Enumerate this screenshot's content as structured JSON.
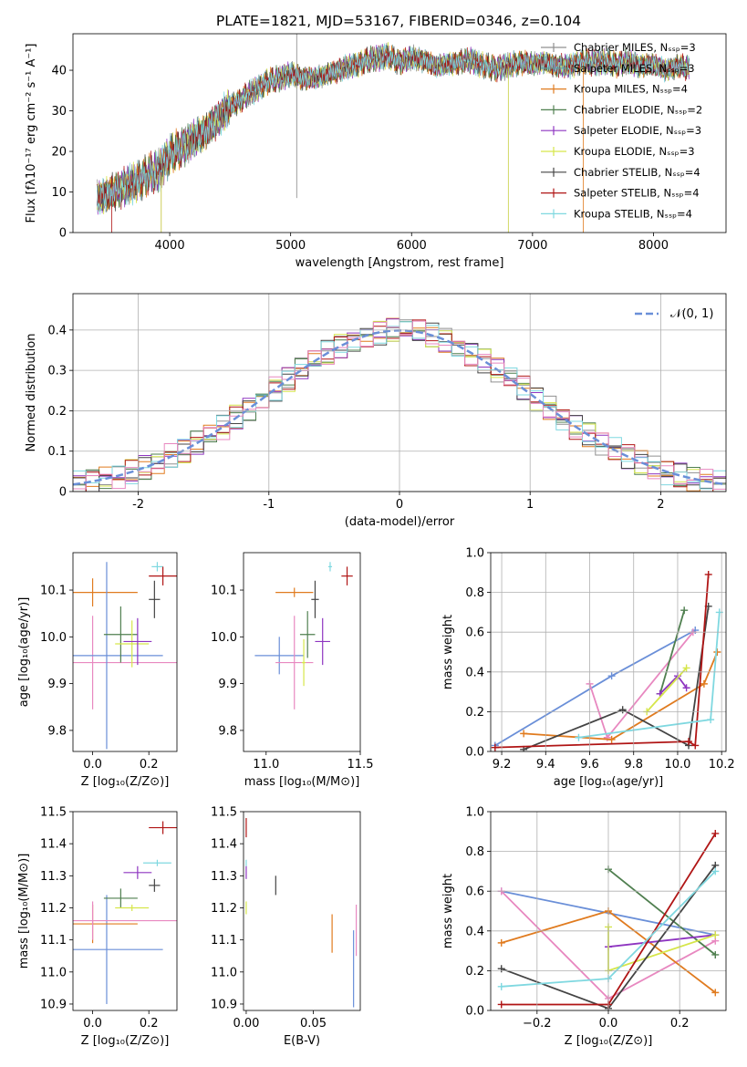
{
  "figure": {
    "title": "PLATE=1821, MJD=53167, FIBERID=0346, z=0.104"
  },
  "chart_data": [
    {
      "id": "spectrum",
      "type": "line",
      "xlabel": "wavelength [Angstrom, rest frame]",
      "ylabel": "Flux [fλ10⁻¹⁷ erg cm⁻² s⁻¹ A⁻¹]",
      "xlim": [
        3200,
        8600
      ],
      "ylim": [
        0,
        49
      ],
      "xticks": [
        4000,
        5000,
        6000,
        7000,
        8000
      ],
      "yticks": [
        0,
        10,
        20,
        30,
        40
      ],
      "legend_position": "right",
      "envelope": {
        "x": [
          3400,
          3500,
          3600,
          3700,
          3800,
          3900,
          4000,
          4100,
          4200,
          4300,
          4400,
          4500,
          4600,
          4700,
          4800,
          4900,
          5000,
          5100,
          5200,
          5300,
          5400,
          5500,
          5600,
          5700,
          5800,
          5900,
          6000,
          6100,
          6200,
          6300,
          6400,
          6500,
          6600,
          6700,
          6800,
          6900,
          7000,
          7100,
          7200,
          7300,
          7400,
          7500,
          7600,
          7700,
          7800,
          7900,
          8000,
          8100,
          8200,
          8300
        ],
        "y": [
          8.5,
          9.5,
          11,
          12,
          14,
          15,
          19,
          21,
          23,
          25,
          28,
          31,
          33,
          35,
          37,
          38,
          39,
          38,
          38,
          39,
          40,
          41,
          42,
          43,
          43.5,
          42,
          43,
          42.5,
          41,
          41.5,
          42,
          42.5,
          41,
          40.5,
          41,
          42,
          41.5,
          42,
          41,
          41,
          42,
          42,
          42,
          41.5,
          42,
          41,
          41.5,
          40,
          41,
          40.5
        ]
      },
      "series": [
        {
          "name": "Chabrier MILES, Nₛₛₚ=3",
          "color": "#909090"
        },
        {
          "name": "Salpeter MILES, Nₛₛₚ=3",
          "color": "#5f9ea0"
        },
        {
          "name": "Kroupa MILES, Nₛₛₚ=4",
          "color": "#e07b1f"
        },
        {
          "name": "Chabrier ELODIE, Nₛₛₚ=2",
          "color": "#4f7f4f"
        },
        {
          "name": "Salpeter ELODIE, Nₛₛₚ=3",
          "color": "#8e35c0"
        },
        {
          "name": "Kroupa ELODIE, Nₛₛₚ=3",
          "color": "#d6e64a"
        },
        {
          "name": "Chabrier STELIB, Nₛₛₚ=4",
          "color": "#444444"
        },
        {
          "name": "Salpeter STELIB, Nₛₛₚ=4",
          "color": "#b01515"
        },
        {
          "name": "Kroupa STELIB, Nₛₛₚ=4",
          "color": "#7fd8e0"
        }
      ]
    },
    {
      "id": "residuals",
      "type": "line",
      "xlabel": "(data-model)/error",
      "ylabel": "Normed distribution",
      "xlim": [
        -2.5,
        2.5
      ],
      "ylim": [
        0,
        0.49
      ],
      "xticks": [
        -2,
        -1,
        0,
        1,
        2
      ],
      "yticks": [
        0.0,
        0.1,
        0.2,
        0.3,
        0.4
      ],
      "grid": true,
      "legend_position": "top-right",
      "legend": "𝒩(0, 1)",
      "gaussian": {
        "mu": 0,
        "sigma": 1,
        "color": "#6a8fd8"
      },
      "histogram_bin_width": 0.1,
      "series_colors": [
        "#909090",
        "#e07b1f",
        "#4f7f4f",
        "#8e35c0",
        "#d6e64a",
        "#444444",
        "#b01515",
        "#7fd8e0",
        "#e888c0"
      ]
    },
    {
      "id": "age_vs_Z",
      "type": "scatter",
      "xlabel": "Z [log₁₀(Z/Z⊙)]",
      "ylabel": "age  [log₁₀(age/yr)]",
      "xlim": [
        -0.07,
        0.3
      ],
      "ylim": [
        9.755,
        10.18
      ],
      "xticks": [
        0.0,
        0.2
      ],
      "yticks": [
        9.8,
        9.9,
        10.0,
        10.1
      ],
      "xticklabels": [
        "0.0",
        "0.2"
      ],
      "yticklabels": [
        "9.8",
        "9.9",
        "10.0",
        "10.1"
      ],
      "points": [
        {
          "x": 0.0,
          "y": 10.095,
          "xerr": 0.16,
          "yerr": 0.03,
          "color": "#e07b1f"
        },
        {
          "x": 0.0,
          "y": 9.945,
          "xerr": 0.3,
          "yerr": 0.1,
          "color": "#e888c0"
        },
        {
          "x": 0.05,
          "y": 9.96,
          "xerr": 0.2,
          "yerr": 0.2,
          "color": "#6a8fd8"
        },
        {
          "x": 0.1,
          "y": 10.005,
          "xerr": 0.06,
          "yerr": 0.06,
          "color": "#4f7f4f"
        },
        {
          "x": 0.14,
          "y": 9.985,
          "xerr": 0.06,
          "yerr": 0.05,
          "color": "#d6e64a"
        },
        {
          "x": 0.16,
          "y": 9.99,
          "xerr": 0.05,
          "yerr": 0.05,
          "color": "#8e35c0"
        },
        {
          "x": 0.22,
          "y": 10.08,
          "xerr": 0.02,
          "yerr": 0.04,
          "color": "#444444"
        },
        {
          "x": 0.23,
          "y": 10.15,
          "xerr": 0.02,
          "yerr": 0.01,
          "color": "#7fd8e0"
        },
        {
          "x": 0.25,
          "y": 10.13,
          "xerr": 0.05,
          "yerr": 0.02,
          "color": "#b01515"
        }
      ]
    },
    {
      "id": "age_vs_mass",
      "type": "scatter",
      "xlabel": "mass [log₁₀(M/M⊙)]",
      "ylabel": "",
      "xlim": [
        10.88,
        11.5
      ],
      "ylim": [
        9.755,
        10.18
      ],
      "xticks": [
        11.0,
        11.5
      ],
      "yticks": [
        9.8,
        9.9,
        10.0,
        10.1
      ],
      "xticklabels": [
        "11.0",
        "11.5"
      ],
      "yticklabels": [
        "9.8",
        "9.9",
        "10.0",
        "10.1"
      ],
      "points": [
        {
          "x": 11.07,
          "y": 9.96,
          "xerr": 0.13,
          "yerr": 0.04,
          "color": "#6a8fd8"
        },
        {
          "x": 11.15,
          "y": 10.095,
          "xerr": 0.1,
          "yerr": 0.01,
          "color": "#e07b1f"
        },
        {
          "x": 11.15,
          "y": 9.945,
          "xerr": 0.1,
          "yerr": 0.1,
          "color": "#e888c0"
        },
        {
          "x": 11.22,
          "y": 10.005,
          "xerr": 0.04,
          "yerr": 0.05,
          "color": "#4f7f4f"
        },
        {
          "x": 11.2,
          "y": 9.945,
          "xerr": 0.01,
          "yerr": 0.05,
          "color": "#d6e64a"
        },
        {
          "x": 11.26,
          "y": 10.08,
          "xerr": 0.02,
          "yerr": 0.04,
          "color": "#444444"
        },
        {
          "x": 11.3,
          "y": 9.99,
          "xerr": 0.04,
          "yerr": 0.05,
          "color": "#8e35c0"
        },
        {
          "x": 11.34,
          "y": 10.15,
          "xerr": 0.01,
          "yerr": 0.01,
          "color": "#7fd8e0"
        },
        {
          "x": 11.43,
          "y": 10.13,
          "xerr": 0.03,
          "yerr": 0.02,
          "color": "#b01515"
        }
      ]
    },
    {
      "id": "weight_vs_age",
      "type": "line",
      "xlabel": "age  [log₁₀(age/yr)]",
      "ylabel": "mass weight",
      "xlim": [
        9.15,
        10.22
      ],
      "ylim": [
        0,
        1
      ],
      "xticks": [
        9.2,
        9.4,
        9.6,
        9.8,
        10.0,
        10.2
      ],
      "yticks": [
        0.0,
        0.2,
        0.4,
        0.6,
        0.8,
        1.0
      ],
      "xticklabels": [
        "9.2",
        "9.4",
        "9.6",
        "9.8",
        "10.0",
        "10.2"
      ],
      "yticklabels": [
        "0.0",
        "0.2",
        "0.4",
        "0.6",
        "0.8",
        "1.0"
      ],
      "grid": true,
      "series": [
        {
          "color": "#6a8fd8",
          "points": [
            [
              9.17,
              0.03
            ],
            [
              9.7,
              0.38
            ],
            [
              10.08,
              0.61
            ]
          ]
        },
        {
          "color": "#e888c0",
          "points": [
            [
              9.6,
              0.34
            ],
            [
              9.68,
              0.07
            ],
            [
              10.07,
              0.6
            ]
          ]
        },
        {
          "color": "#e07b1f",
          "points": [
            [
              9.3,
              0.09
            ],
            [
              9.7,
              0.06
            ],
            [
              10.12,
              0.34
            ],
            [
              10.18,
              0.5
            ]
          ]
        },
        {
          "color": "#4f7f4f",
          "points": [
            [
              9.92,
              0.29
            ],
            [
              10.03,
              0.71
            ]
          ]
        },
        {
          "color": "#8e35c0",
          "points": [
            [
              9.92,
              0.29
            ],
            [
              10.0,
              0.38
            ],
            [
              10.04,
              0.32
            ]
          ]
        },
        {
          "color": "#d6e64a",
          "points": [
            [
              9.86,
              0.2
            ],
            [
              10.04,
              0.42
            ]
          ]
        },
        {
          "color": "#444444",
          "points": [
            [
              9.3,
              0.01
            ],
            [
              9.75,
              0.21
            ],
            [
              10.05,
              0.03
            ],
            [
              10.14,
              0.73
            ]
          ]
        },
        {
          "color": "#b01515",
          "points": [
            [
              9.17,
              0.02
            ],
            [
              10.05,
              0.05
            ],
            [
              10.08,
              0.03
            ],
            [
              10.14,
              0.89
            ]
          ]
        },
        {
          "color": "#7fd8e0",
          "points": [
            [
              9.55,
              0.07
            ],
            [
              10.15,
              0.16
            ],
            [
              10.19,
              0.7
            ]
          ]
        }
      ]
    },
    {
      "id": "mass_vs_Z",
      "type": "scatter",
      "xlabel": "Z [log₁₀(Z/Z⊙)]",
      "ylabel": "mass [log₁₀(M/M⊙)]",
      "xlim": [
        -0.07,
        0.3
      ],
      "ylim": [
        10.88,
        11.5
      ],
      "xticks": [
        0.0,
        0.2
      ],
      "yticks": [
        10.9,
        11.0,
        11.1,
        11.2,
        11.3,
        11.4,
        11.5
      ],
      "xticklabels": [
        "0.0",
        "0.2"
      ],
      "yticklabels": [
        "10.9",
        "11.0",
        "11.1",
        "11.2",
        "11.3",
        "11.4",
        "11.5"
      ],
      "points": [
        {
          "x": 0.05,
          "y": 11.07,
          "xerr": 0.2,
          "yerr": 0.17,
          "color": "#6a8fd8"
        },
        {
          "x": 0.0,
          "y": 11.15,
          "xerr": 0.16,
          "yerr": 0.06,
          "color": "#e07b1f"
        },
        {
          "x": 0.0,
          "y": 11.16,
          "xerr": 0.3,
          "yerr": 0.06,
          "color": "#e888c0"
        },
        {
          "x": 0.1,
          "y": 11.23,
          "xerr": 0.06,
          "yerr": 0.03,
          "color": "#4f7f4f"
        },
        {
          "x": 0.14,
          "y": 11.2,
          "xerr": 0.06,
          "yerr": 0.01,
          "color": "#d6e64a"
        },
        {
          "x": 0.16,
          "y": 11.31,
          "xerr": 0.05,
          "yerr": 0.02,
          "color": "#8e35c0"
        },
        {
          "x": 0.22,
          "y": 11.27,
          "xerr": 0.02,
          "yerr": 0.02,
          "color": "#444444"
        },
        {
          "x": 0.23,
          "y": 11.34,
          "xerr": 0.05,
          "yerr": 0.01,
          "color": "#7fd8e0"
        },
        {
          "x": 0.25,
          "y": 11.45,
          "xerr": 0.05,
          "yerr": 0.02,
          "color": "#b01515"
        }
      ]
    },
    {
      "id": "mass_vs_EBV",
      "type": "scatter",
      "xlabel": "E(B-V)",
      "ylabel": "",
      "xlim": [
        -0.002,
        0.085
      ],
      "ylim": [
        10.88,
        11.5
      ],
      "xticks": [
        0.0,
        0.05
      ],
      "yticks": [
        10.9,
        11.0,
        11.1,
        11.2,
        11.3,
        11.4,
        11.5
      ],
      "xticklabels": [
        "0.00",
        "0.05"
      ],
      "yticklabels": [
        "10.9",
        "11.0",
        "11.1",
        "11.2",
        "11.3",
        "11.4",
        "11.5"
      ],
      "points": [
        {
          "x": 0.0,
          "y": 11.45,
          "xerr": 0,
          "yerr": 0.03,
          "color": "#b01515"
        },
        {
          "x": 0.0,
          "y": 11.34,
          "xerr": 0,
          "yerr": 0.01,
          "color": "#7fd8e0"
        },
        {
          "x": 0.0,
          "y": 11.31,
          "xerr": 0,
          "yerr": 0.02,
          "color": "#8e35c0"
        },
        {
          "x": 0.0,
          "y": 11.2,
          "xerr": 0,
          "yerr": 0.02,
          "color": "#d6e64a"
        },
        {
          "x": 0.022,
          "y": 11.27,
          "xerr": 0,
          "yerr": 0.03,
          "color": "#444444"
        },
        {
          "x": 0.064,
          "y": 11.12,
          "xerr": 0,
          "yerr": 0.06,
          "color": "#e07b1f"
        },
        {
          "x": 0.08,
          "y": 11.01,
          "xerr": 0,
          "yerr": 0.12,
          "color": "#6a8fd8"
        },
        {
          "x": 0.082,
          "y": 11.13,
          "xerr": 0,
          "yerr": 0.08,
          "color": "#e888c0"
        }
      ]
    },
    {
      "id": "weight_vs_Z",
      "type": "line",
      "xlabel": "Z [log₁₀(Z/Z⊙)]",
      "ylabel": "mass weight",
      "xlim": [
        -0.33,
        0.33
      ],
      "ylim": [
        0,
        1
      ],
      "xticks": [
        -0.2,
        0.0,
        0.2
      ],
      "yticks": [
        0.0,
        0.2,
        0.4,
        0.6,
        0.8,
        1.0
      ],
      "xticklabels": [
        "−0.2",
        "0.0",
        "0.2"
      ],
      "yticklabels": [
        "0.0",
        "0.2",
        "0.4",
        "0.6",
        "0.8",
        "1.0"
      ],
      "grid": true,
      "series": [
        {
          "color": "#6a8fd8",
          "points": [
            [
              -0.3,
              0.6
            ],
            [
              0.3,
              0.38
            ]
          ]
        },
        {
          "color": "#e888c0",
          "points": [
            [
              -0.3,
              0.6
            ],
            [
              0.0,
              0.06
            ],
            [
              0.3,
              0.35
            ]
          ]
        },
        {
          "color": "#e07b1f",
          "points": [
            [
              -0.3,
              0.34
            ],
            [
              0.0,
              0.5
            ],
            [
              0.3,
              0.09
            ]
          ]
        },
        {
          "color": "#4f7f4f",
          "points": [
            [
              0.0,
              0.71
            ],
            [
              0.3,
              0.28
            ]
          ]
        },
        {
          "color": "#8e35c0",
          "points": [
            [
              0.0,
              0.32
            ],
            [
              0.3,
              0.38
            ]
          ]
        },
        {
          "color": "#d6e64a",
          "points": [
            [
              0.0,
              0.42
            ],
            [
              0.0,
              0.2
            ],
            [
              0.3,
              0.38
            ]
          ]
        },
        {
          "color": "#444444",
          "points": [
            [
              -0.3,
              0.21
            ],
            [
              0.0,
              0.01
            ],
            [
              0.3,
              0.73
            ]
          ]
        },
        {
          "color": "#b01515",
          "points": [
            [
              -0.3,
              0.03
            ],
            [
              0.0,
              0.03
            ],
            [
              0.3,
              0.89
            ]
          ]
        },
        {
          "color": "#7fd8e0",
          "points": [
            [
              -0.3,
              0.12
            ],
            [
              0.0,
              0.16
            ],
            [
              0.3,
              0.7
            ]
          ]
        }
      ]
    }
  ]
}
